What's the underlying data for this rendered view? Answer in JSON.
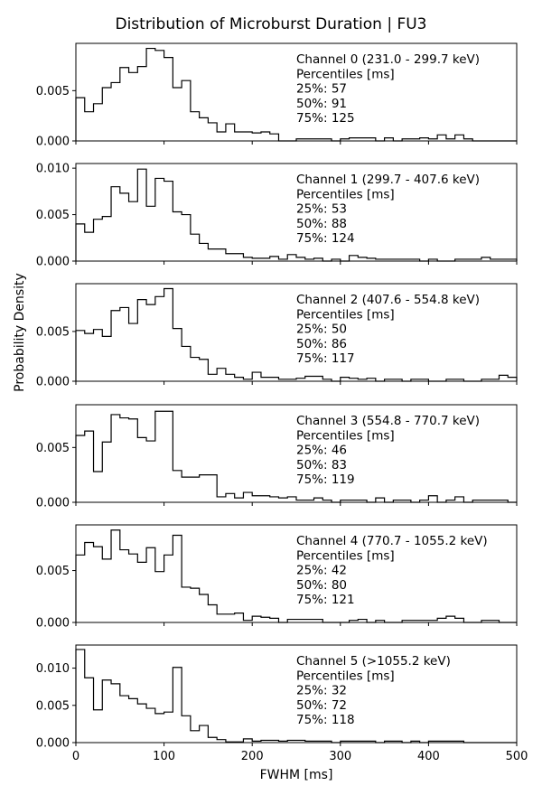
{
  "figure": {
    "title": "Distribution of Microburst Duration | FU3",
    "ylabel": "Probability Density",
    "xlabel": "FWHM [ms]"
  },
  "chart_data": [
    {
      "type": "bar",
      "subtype": "step-histogram",
      "bin_width_ms": 10,
      "xlim": [
        0,
        500
      ],
      "ylim": [
        0,
        0.0097
      ],
      "xticks": [
        0,
        100,
        200,
        300,
        400,
        500
      ],
      "yticks": [
        0.0,
        0.005
      ],
      "ytick_labels": [
        "0.000",
        "0.005"
      ],
      "xtick_labels_visible": false,
      "annotation": [
        "Channel 0 (231.0 - 299.7 keV)",
        "Percentiles [ms]",
        "25%: 57",
        "50%: 91",
        "75%: 125"
      ],
      "values": [
        0.0043,
        0.0029,
        0.0037,
        0.0053,
        0.0058,
        0.0073,
        0.0068,
        0.0074,
        0.0092,
        0.009,
        0.0083,
        0.0053,
        0.006,
        0.0029,
        0.0023,
        0.0018,
        0.0009,
        0.0017,
        0.0009,
        0.0009,
        0.0008,
        0.0009,
        0.0007,
        0.0,
        0.0,
        0.0002,
        0.0002,
        0.0002,
        0.0002,
        0.0,
        0.0002,
        0.0003,
        0.0003,
        0.0003,
        0.0,
        0.0003,
        0.0,
        0.0002,
        0.0002,
        0.0003,
        0.0002,
        0.0006,
        0.0002,
        0.0006,
        0.0002,
        0.0,
        0.0,
        0.0,
        0.0,
        0.0
      ]
    },
    {
      "type": "bar",
      "subtype": "step-histogram",
      "bin_width_ms": 10,
      "xlim": [
        0,
        500
      ],
      "ylim": [
        0,
        0.0105
      ],
      "xticks": [
        0,
        100,
        200,
        300,
        400,
        500
      ],
      "yticks": [
        0.0,
        0.005,
        0.01
      ],
      "ytick_labels": [
        "0.000",
        "0.005",
        "0.010"
      ],
      "xtick_labels_visible": false,
      "annotation": [
        "Channel 1 (299.7 - 407.6 keV)",
        "Percentiles [ms]",
        "25%: 53",
        "50%: 88",
        "75%: 124"
      ],
      "values": [
        0.004,
        0.0031,
        0.0045,
        0.0048,
        0.008,
        0.0073,
        0.0064,
        0.0099,
        0.0059,
        0.0089,
        0.0086,
        0.0053,
        0.005,
        0.0029,
        0.0019,
        0.0013,
        0.0013,
        0.0008,
        0.0008,
        0.0004,
        0.0003,
        0.0003,
        0.0005,
        0.0002,
        0.0007,
        0.0004,
        0.0002,
        0.0003,
        0.0,
        0.0002,
        0.0,
        0.0006,
        0.0004,
        0.0003,
        0.0002,
        0.0002,
        0.0002,
        0.0002,
        0.0002,
        0.0,
        0.0002,
        0.0,
        0.0,
        0.0002,
        0.0002,
        0.0002,
        0.0004,
        0.0002,
        0.0002,
        0.0002
      ]
    },
    {
      "type": "bar",
      "subtype": "step-histogram",
      "bin_width_ms": 10,
      "xlim": [
        0,
        500
      ],
      "ylim": [
        0,
        0.0098
      ],
      "xticks": [
        0,
        100,
        200,
        300,
        400,
        500
      ],
      "yticks": [
        0.0,
        0.005
      ],
      "ytick_labels": [
        "0.000",
        "0.005"
      ],
      "xtick_labels_visible": false,
      "annotation": [
        "Channel 2 (407.6 - 554.8 keV)",
        "Percentiles [ms]",
        "25%: 50",
        "50%: 86",
        "75%: 117"
      ],
      "values": [
        0.0051,
        0.0048,
        0.0052,
        0.0045,
        0.0071,
        0.0074,
        0.0058,
        0.0082,
        0.0077,
        0.0085,
        0.0093,
        0.0053,
        0.0035,
        0.0024,
        0.0022,
        0.0007,
        0.0013,
        0.0007,
        0.0004,
        0.0002,
        0.0009,
        0.0004,
        0.0004,
        0.0002,
        0.0002,
        0.0003,
        0.0005,
        0.0005,
        0.0002,
        0.0,
        0.0004,
        0.0003,
        0.0002,
        0.0003,
        0.0,
        0.0002,
        0.0002,
        0.0,
        0.0002,
        0.0002,
        0.0,
        0.0,
        0.0002,
        0.0002,
        0.0,
        0.0,
        0.0002,
        0.0002,
        0.0006,
        0.0004
      ]
    },
    {
      "type": "bar",
      "subtype": "step-histogram",
      "bin_width_ms": 10,
      "xlim": [
        0,
        500
      ],
      "ylim": [
        0,
        0.0089
      ],
      "xticks": [
        0,
        100,
        200,
        300,
        400,
        500
      ],
      "yticks": [
        0.0,
        0.005
      ],
      "ytick_labels": [
        "0.000",
        "0.005"
      ],
      "xtick_labels_visible": false,
      "annotation": [
        "Channel 3 (554.8 - 770.7 keV)",
        "Percentiles [ms]",
        "25%: 46",
        "50%: 83",
        "75%: 119"
      ],
      "values": [
        0.0061,
        0.0065,
        0.0028,
        0.0055,
        0.008,
        0.0077,
        0.0076,
        0.0059,
        0.0056,
        0.0083,
        0.0083,
        0.0029,
        0.0023,
        0.0023,
        0.0025,
        0.0025,
        0.0005,
        0.0008,
        0.0004,
        0.0009,
        0.0006,
        0.0006,
        0.0005,
        0.0004,
        0.0005,
        0.0002,
        0.0002,
        0.0004,
        0.0002,
        0.0,
        0.0002,
        0.0002,
        0.0002,
        0.0,
        0.0004,
        0.0,
        0.0002,
        0.0002,
        0.0,
        0.0002,
        0.0006,
        0.0,
        0.0002,
        0.0005,
        0.0,
        0.0002,
        0.0002,
        0.0002,
        0.0002,
        0.0
      ]
    },
    {
      "type": "bar",
      "subtype": "step-histogram",
      "bin_width_ms": 10,
      "xlim": [
        0,
        500
      ],
      "ylim": [
        0,
        0.0094
      ],
      "xticks": [
        0,
        100,
        200,
        300,
        400,
        500
      ],
      "yticks": [
        0.0,
        0.005
      ],
      "ytick_labels": [
        "0.000",
        "0.005"
      ],
      "xtick_labels_visible": false,
      "annotation": [
        "Channel 4 (770.7 - 1055.2 keV)",
        "Percentiles [ms]",
        "25%: 42",
        "50%: 80",
        "75%: 121"
      ],
      "values": [
        0.0065,
        0.0077,
        0.0073,
        0.0061,
        0.0089,
        0.007,
        0.0066,
        0.0058,
        0.0072,
        0.0049,
        0.0065,
        0.0084,
        0.0034,
        0.0033,
        0.0027,
        0.0017,
        0.0008,
        0.0008,
        0.0009,
        0.0002,
        0.0006,
        0.0005,
        0.0004,
        0.0,
        0.0003,
        0.0003,
        0.0003,
        0.0003,
        0.0,
        0.0,
        0.0,
        0.0002,
        0.0003,
        0.0,
        0.0002,
        0.0,
        0.0,
        0.0002,
        0.0002,
        0.0002,
        0.0002,
        0.0004,
        0.0006,
        0.0004,
        0.0,
        0.0,
        0.0002,
        0.0002,
        0.0,
        0.0
      ]
    },
    {
      "type": "bar",
      "subtype": "step-histogram",
      "bin_width_ms": 10,
      "xlim": [
        0,
        500
      ],
      "ylim": [
        0,
        0.0131
      ],
      "xticks": [
        0,
        100,
        200,
        300,
        400,
        500
      ],
      "xtick_labels": [
        "0",
        "100",
        "200",
        "300",
        "400",
        "500"
      ],
      "yticks": [
        0.0,
        0.005,
        0.01
      ],
      "ytick_labels": [
        "0.000",
        "0.005",
        "0.010"
      ],
      "xtick_labels_visible": true,
      "annotation": [
        "Channel 5 (>1055.2 keV)",
        "Percentiles [ms]",
        "25%: 32",
        "50%: 72",
        "75%: 118"
      ],
      "values": [
        0.0125,
        0.0087,
        0.0044,
        0.0084,
        0.0079,
        0.0063,
        0.0059,
        0.0052,
        0.0046,
        0.0039,
        0.0041,
        0.0101,
        0.0036,
        0.0016,
        0.0023,
        0.0007,
        0.0004,
        0.0001,
        0.0001,
        0.0005,
        0.0002,
        0.0003,
        0.0003,
        0.0002,
        0.0003,
        0.0003,
        0.0002,
        0.0002,
        0.0002,
        0.0,
        0.0002,
        0.0002,
        0.0002,
        0.0002,
        0.0,
        0.0002,
        0.0002,
        0.0,
        0.0002,
        0.0,
        0.0002,
        0.0002,
        0.0002,
        0.0002,
        0.0,
        0.0,
        0.0,
        0.0,
        0.0,
        0.0
      ]
    }
  ]
}
